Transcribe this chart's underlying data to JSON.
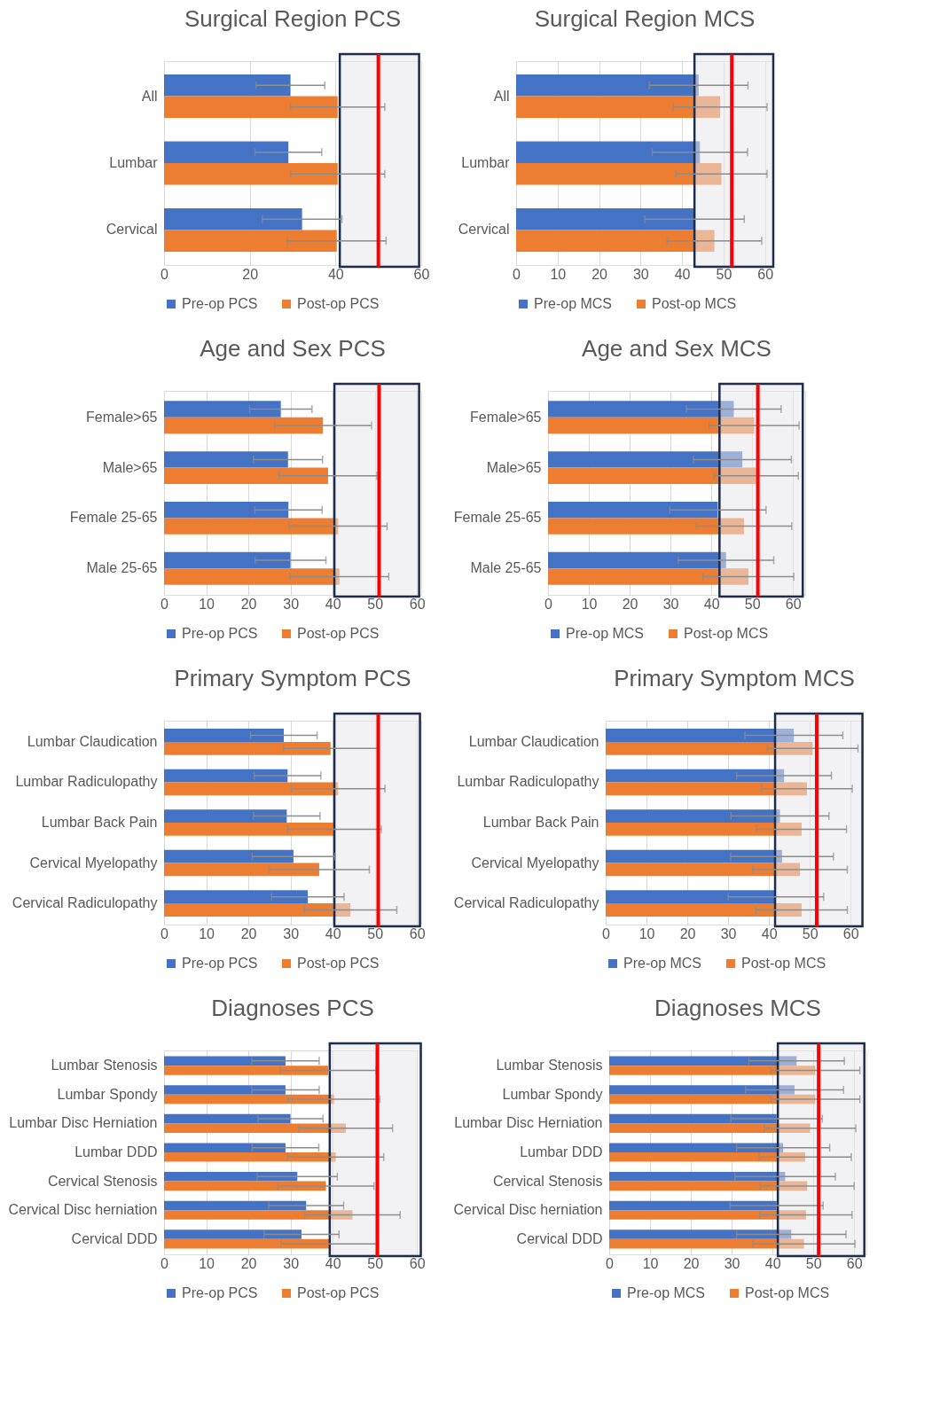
{
  "chart_data": [
    {
      "type": "bar",
      "orientation": "horizontal",
      "title": "Surgical Region PCS",
      "categories": [
        "All",
        "Lumbar",
        "Cervical"
      ],
      "xlim": [
        0,
        60
      ],
      "xticks": [
        0,
        20,
        40,
        60
      ],
      "grid": "x",
      "legend": "bottom",
      "series": [
        {
          "name": "Pre-op PCS",
          "color": "#4472c4",
          "values": [
            29.5,
            29,
            32.2
          ],
          "errors": [
            8,
            7.8,
            9.3
          ]
        },
        {
          "name": "Post-op PCS",
          "color": "#ed7d31",
          "values": [
            40.5,
            40.5,
            40.3
          ],
          "errors": [
            11,
            11,
            11.5
          ]
        }
      ],
      "ref_lines": [
        {
          "axis": "x",
          "value": 50,
          "color": "#ff0000"
        }
      ],
      "bands": [
        {
          "axis": "x",
          "from": 41,
          "to": 59.5,
          "color": "#e7e6e9"
        }
      ]
    },
    {
      "type": "bar",
      "orientation": "horizontal",
      "title": "Surgical Region MCS",
      "categories": [
        "All",
        "Lumbar",
        "Cervical"
      ],
      "xlim": [
        0,
        62
      ],
      "xticks": [
        0,
        10,
        20,
        30,
        40,
        50,
        60
      ],
      "grid": "x",
      "legend": "bottom",
      "series": [
        {
          "name": "Pre-op MCS",
          "color": "#4472c4",
          "values": [
            44,
            44.3,
            43
          ],
          "errors": [
            11.9,
            11.5,
            12
          ]
        },
        {
          "name": "Post-op MCS",
          "color": "#ed7d31",
          "values": [
            49.2,
            49.5,
            47.8
          ],
          "errors": [
            11.3,
            11,
            11.4
          ]
        }
      ],
      "ref_lines": [
        {
          "axis": "x",
          "value": 52,
          "color": "#ff0000"
        }
      ],
      "bands": [
        {
          "axis": "x",
          "from": 43,
          "to": 62,
          "color": "#e7e6e9"
        }
      ]
    },
    {
      "type": "bar",
      "orientation": "horizontal",
      "title": "Age and Sex PCS",
      "categories": [
        "Female>65",
        "Male>65",
        "Female 25-65",
        "Male 25-65"
      ],
      "xlim": [
        0,
        61
      ],
      "xticks": [
        0,
        10,
        20,
        30,
        40,
        50,
        60
      ],
      "grid": "x",
      "legend": "bottom",
      "series": [
        {
          "name": "Pre-op PCS",
          "color": "#4472c4",
          "values": [
            27.7,
            29.4,
            29.5,
            30
          ],
          "errors": [
            7.4,
            8.2,
            8,
            8.4
          ]
        },
        {
          "name": "Post-op PCS",
          "color": "#ed7d31",
          "values": [
            37.7,
            38.9,
            41.3,
            41.6
          ],
          "errors": [
            11.5,
            11.6,
            11.6,
            11.7
          ]
        }
      ],
      "ref_lines": [
        {
          "axis": "x",
          "value": 51,
          "color": "#ff0000"
        }
      ],
      "bands": [
        {
          "axis": "x",
          "from": 40.4,
          "to": 60.5,
          "color": "#e7e6e9"
        }
      ]
    },
    {
      "type": "bar",
      "orientation": "horizontal",
      "title": "Age and Sex MCS",
      "categories": [
        "Female>65",
        "Male>65",
        "Female 25-65",
        "Male 25-65"
      ],
      "xlim": [
        0,
        63
      ],
      "xticks": [
        0,
        10,
        20,
        30,
        40,
        50,
        60
      ],
      "grid": "x",
      "legend": "bottom",
      "series": [
        {
          "name": "Pre-op MCS",
          "color": "#4472c4",
          "values": [
            45.5,
            47.6,
            41.6,
            43.6
          ],
          "errors": [
            11.6,
            12,
            11.8,
            11.7
          ]
        },
        {
          "name": "Post-op MCS",
          "color": "#ed7d31",
          "values": [
            50.5,
            51,
            48,
            49.1
          ],
          "errors": [
            11,
            10.3,
            11.7,
            11.1
          ]
        }
      ],
      "ref_lines": [
        {
          "axis": "x",
          "value": 51.4,
          "color": "#ff0000"
        }
      ],
      "bands": [
        {
          "axis": "x",
          "from": 42,
          "to": 62.4,
          "color": "#e7e6e9"
        }
      ]
    },
    {
      "type": "bar",
      "orientation": "horizontal",
      "title": "Primary Symptom PCS",
      "categories": [
        "Lumbar Claudication",
        "Lumbar Radiculopathy",
        "Lumbar Back Pain",
        "Cervical Myelopathy",
        "Cervical Radiculopathy"
      ],
      "xlim": [
        0,
        61
      ],
      "xticks": [
        0,
        10,
        20,
        30,
        40,
        50,
        60
      ],
      "grid": "x",
      "legend": "bottom",
      "series": [
        {
          "name": "Pre-op PCS",
          "color": "#4472c4",
          "values": [
            28.4,
            29.3,
            29.1,
            30.7,
            34.1
          ],
          "errors": [
            7.9,
            7.9,
            7.9,
            9.8,
            8.6
          ]
        },
        {
          "name": "Post-op PCS",
          "color": "#ed7d31",
          "values": [
            39.5,
            41.3,
            40.4,
            36.8,
            44.2
          ],
          "errors": [
            11.2,
            11.1,
            11.1,
            11.9,
            11
          ]
        }
      ],
      "ref_lines": [
        {
          "axis": "x",
          "value": 50.8,
          "color": "#ff0000"
        }
      ],
      "bands": [
        {
          "axis": "x",
          "from": 40.4,
          "to": 60.7,
          "color": "#e7e6e9"
        }
      ]
    },
    {
      "type": "bar",
      "orientation": "horizontal",
      "title": "Primary Symptom MCS",
      "categories": [
        "Lumbar Claudication",
        "Lumbar Radiculopathy",
        "Lumbar Back Pain",
        "Cervical Myelopathy",
        "Cervical Radiculopathy"
      ],
      "xlim": [
        0,
        63
      ],
      "xticks": [
        0,
        10,
        20,
        30,
        40,
        50,
        60
      ],
      "grid": "x",
      "legend": "bottom",
      "series": [
        {
          "name": "Pre-op MCS",
          "color": "#4472c4",
          "values": [
            46.1,
            43.7,
            42.7,
            43.2,
            41.7
          ],
          "errors": [
            12,
            11.6,
            12,
            12.6,
            11.7
          ]
        },
        {
          "name": "Post-op MCS",
          "color": "#ed7d31",
          "values": [
            50.7,
            49.3,
            48,
            47.6,
            48
          ],
          "errors": [
            11.1,
            11.1,
            11,
            11.6,
            11.2
          ]
        }
      ],
      "ref_lines": [
        {
          "axis": "x",
          "value": 51.7,
          "color": "#ff0000"
        }
      ],
      "bands": [
        {
          "axis": "x",
          "from": 41.5,
          "to": 62.9,
          "color": "#e7e6e9"
        }
      ]
    },
    {
      "type": "bar",
      "orientation": "horizontal",
      "title": "Diagnoses PCS",
      "categories": [
        "Lumbar Stenosis",
        "Lumbar Spondy",
        "Lumbar Disc Herniation",
        "Lumbar DDD",
        "Cervical Stenosis",
        "Cervical Disc herniation",
        "Cervical DDD"
      ],
      "xlim": [
        0,
        61
      ],
      "xticks": [
        0,
        10,
        20,
        30,
        40,
        50,
        60
      ],
      "grid": "x",
      "legend": "bottom",
      "series": [
        {
          "name": "Pre-op PCS",
          "color": "#4472c4",
          "values": [
            28.8,
            28.8,
            30,
            28.8,
            31.6,
            33.7,
            32.6
          ],
          "errors": [
            8,
            8,
            7.7,
            7.9,
            9.5,
            8.9,
            8.9
          ]
        },
        {
          "name": "Post-op PCS",
          "color": "#ed7d31",
          "values": [
            38.9,
            40.3,
            43.1,
            40.7,
            38.4,
            44.7,
            39.3
          ],
          "errors": [
            11.4,
            10.9,
            11.1,
            11.4,
            11.4,
            11.3,
            11.5
          ]
        }
      ],
      "ref_lines": [
        {
          "axis": "x",
          "value": 50.6,
          "color": "#ff0000"
        }
      ],
      "bands": [
        {
          "axis": "x",
          "from": 39.3,
          "to": 60.9,
          "color": "#e7e6e9"
        }
      ]
    },
    {
      "type": "bar",
      "orientation": "horizontal",
      "title": "Diagnoses MCS",
      "categories": [
        "Lumbar Stenosis",
        "Lumbar Spondy",
        "Lumbar Disc Herniation",
        "Lumbar DDD",
        "Cervical Stenosis",
        "Cervical Disc herniation",
        "Cervical DDD"
      ],
      "xlim": [
        0,
        63
      ],
      "xticks": [
        0,
        10,
        20,
        30,
        40,
        50,
        60
      ],
      "grid": "x",
      "legend": "bottom",
      "series": [
        {
          "name": "Pre-op MCS",
          "color": "#4472c4",
          "values": [
            45.9,
            45.4,
            41,
            42.6,
            43.1,
            41,
            44.6
          ],
          "errors": [
            11.7,
            12,
            11.2,
            11.4,
            12.3,
            11.4,
            13.4
          ]
        },
        {
          "name": "Post-op MCS",
          "color": "#ed7d31",
          "values": [
            50.5,
            50.5,
            49.2,
            48,
            48.5,
            48.2,
            47.7
          ],
          "errors": [
            10.9,
            10.9,
            11.2,
            11.3,
            11.5,
            11.3,
            12.5
          ]
        }
      ],
      "ref_lines": [
        {
          "axis": "x",
          "value": 51.3,
          "color": "#ff0000"
        }
      ],
      "bands": [
        {
          "axis": "x",
          "from": 41.3,
          "to": 62.5,
          "color": "#e7e6e9"
        }
      ]
    }
  ]
}
